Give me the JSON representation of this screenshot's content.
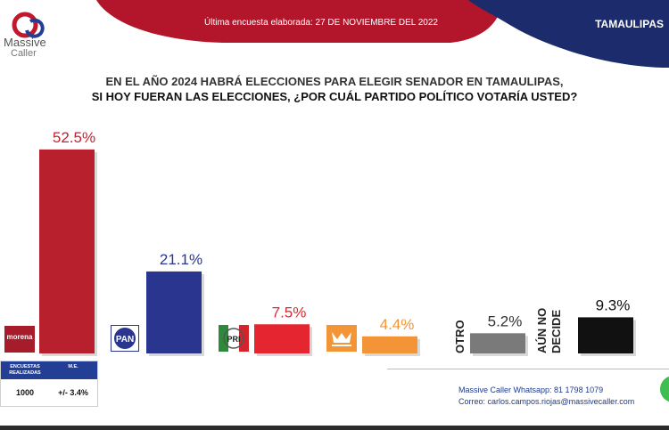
{
  "header": {
    "survey_date": "Última encuesta elaborada:  27 DE NOVIEMBRE DEL 2022",
    "state": "TAMAULIPAS",
    "logo_line1": "Massive",
    "logo_line2": "Caller",
    "colors": {
      "red": "#b3152a",
      "navy": "#1b2b6b"
    }
  },
  "question": {
    "line1": "EN EL AÑO 2024 HABRÁ ELECCIONES PARA ELEGIR SENADOR EN TAMAULIPAS,",
    "line2": "SI HOY FUERAN LAS ELECCIONES, ¿POR CUÁL PARTIDO POLÍTICO VOTARÍA USTED?"
  },
  "chart_data": {
    "type": "bar",
    "categories": [
      "morena",
      "PAN",
      "PRI",
      "MC",
      "OTRO",
      "AÚN NO DECIDE"
    ],
    "values": [
      52.5,
      21.1,
      7.5,
      4.4,
      5.2,
      9.3
    ],
    "value_labels": [
      "52.5%",
      "21.1%",
      "7.5%",
      "4.4%",
      "5.2%",
      "9.3%"
    ],
    "colors": [
      "#b8202e",
      "#2a3590",
      "#e52530",
      "#f39437",
      "#7a7a7a",
      "#111111"
    ],
    "label_colors": [
      "#c8202e",
      "#2a3590",
      "#e52530",
      "#f39437",
      "#333333",
      "#111111"
    ],
    "text_labels": [
      "",
      "",
      "",
      "",
      "OTRO",
      "AÚN NO\nDECIDE"
    ],
    "ylim": [
      0,
      55
    ],
    "grid": false,
    "legend": "none"
  },
  "info_table": {
    "headers": [
      "ENCUESTAS REALIZADAS",
      "M.E."
    ],
    "values": [
      "1000",
      "+/- 3.4%"
    ]
  },
  "contact": {
    "whatsapp": "Massive Caller Whatsapp: 81 1798 1079",
    "email": "Correo: carlos.campos.riojas@massivecaller.com"
  }
}
